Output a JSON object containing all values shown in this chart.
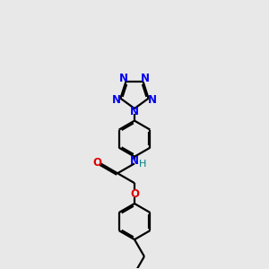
{
  "bg_color": "#e8e8e8",
  "bond_color": "#000000",
  "N_color": "#0000ee",
  "O_color": "#dd0000",
  "H_color": "#008080",
  "line_width": 1.6,
  "dbo": 0.018,
  "figsize": [
    3.0,
    3.0
  ],
  "dpi": 100,
  "xlim": [
    0.3,
    1.7
  ],
  "ylim": [
    0.0,
    3.0
  ]
}
